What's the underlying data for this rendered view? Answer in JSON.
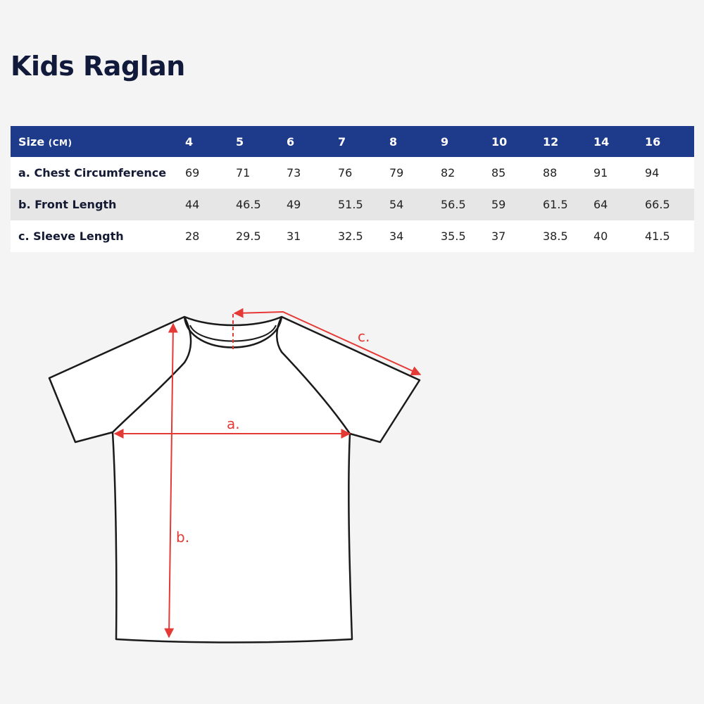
{
  "title": "Kids Raglan",
  "table": {
    "header_label": "Size",
    "header_unit": "(CM)",
    "sizes": [
      "4",
      "5",
      "6",
      "7",
      "8",
      "9",
      "10",
      "12",
      "14",
      "16"
    ],
    "rows": [
      {
        "label": "a. Chest Circumference",
        "values": [
          "69",
          "71",
          "73",
          "76",
          "79",
          "82",
          "85",
          "88",
          "91",
          "94"
        ]
      },
      {
        "label": "b. Front Length",
        "values": [
          "44",
          "46.5",
          "49",
          "51.5",
          "54",
          "56.5",
          "59",
          "61.5",
          "64",
          "66.5"
        ]
      },
      {
        "label": "c. Sleeve Length",
        "values": [
          "28",
          "29.5",
          "31",
          "32.5",
          "34",
          "35.5",
          "37",
          "38.5",
          "40",
          "41.5"
        ]
      }
    ]
  },
  "diagram": {
    "labels": {
      "a": "a.",
      "b": "b.",
      "c": "c."
    },
    "colors": {
      "outline": "#1a1a1a",
      "measure": "#e53935",
      "garment": "#ffffff"
    }
  }
}
